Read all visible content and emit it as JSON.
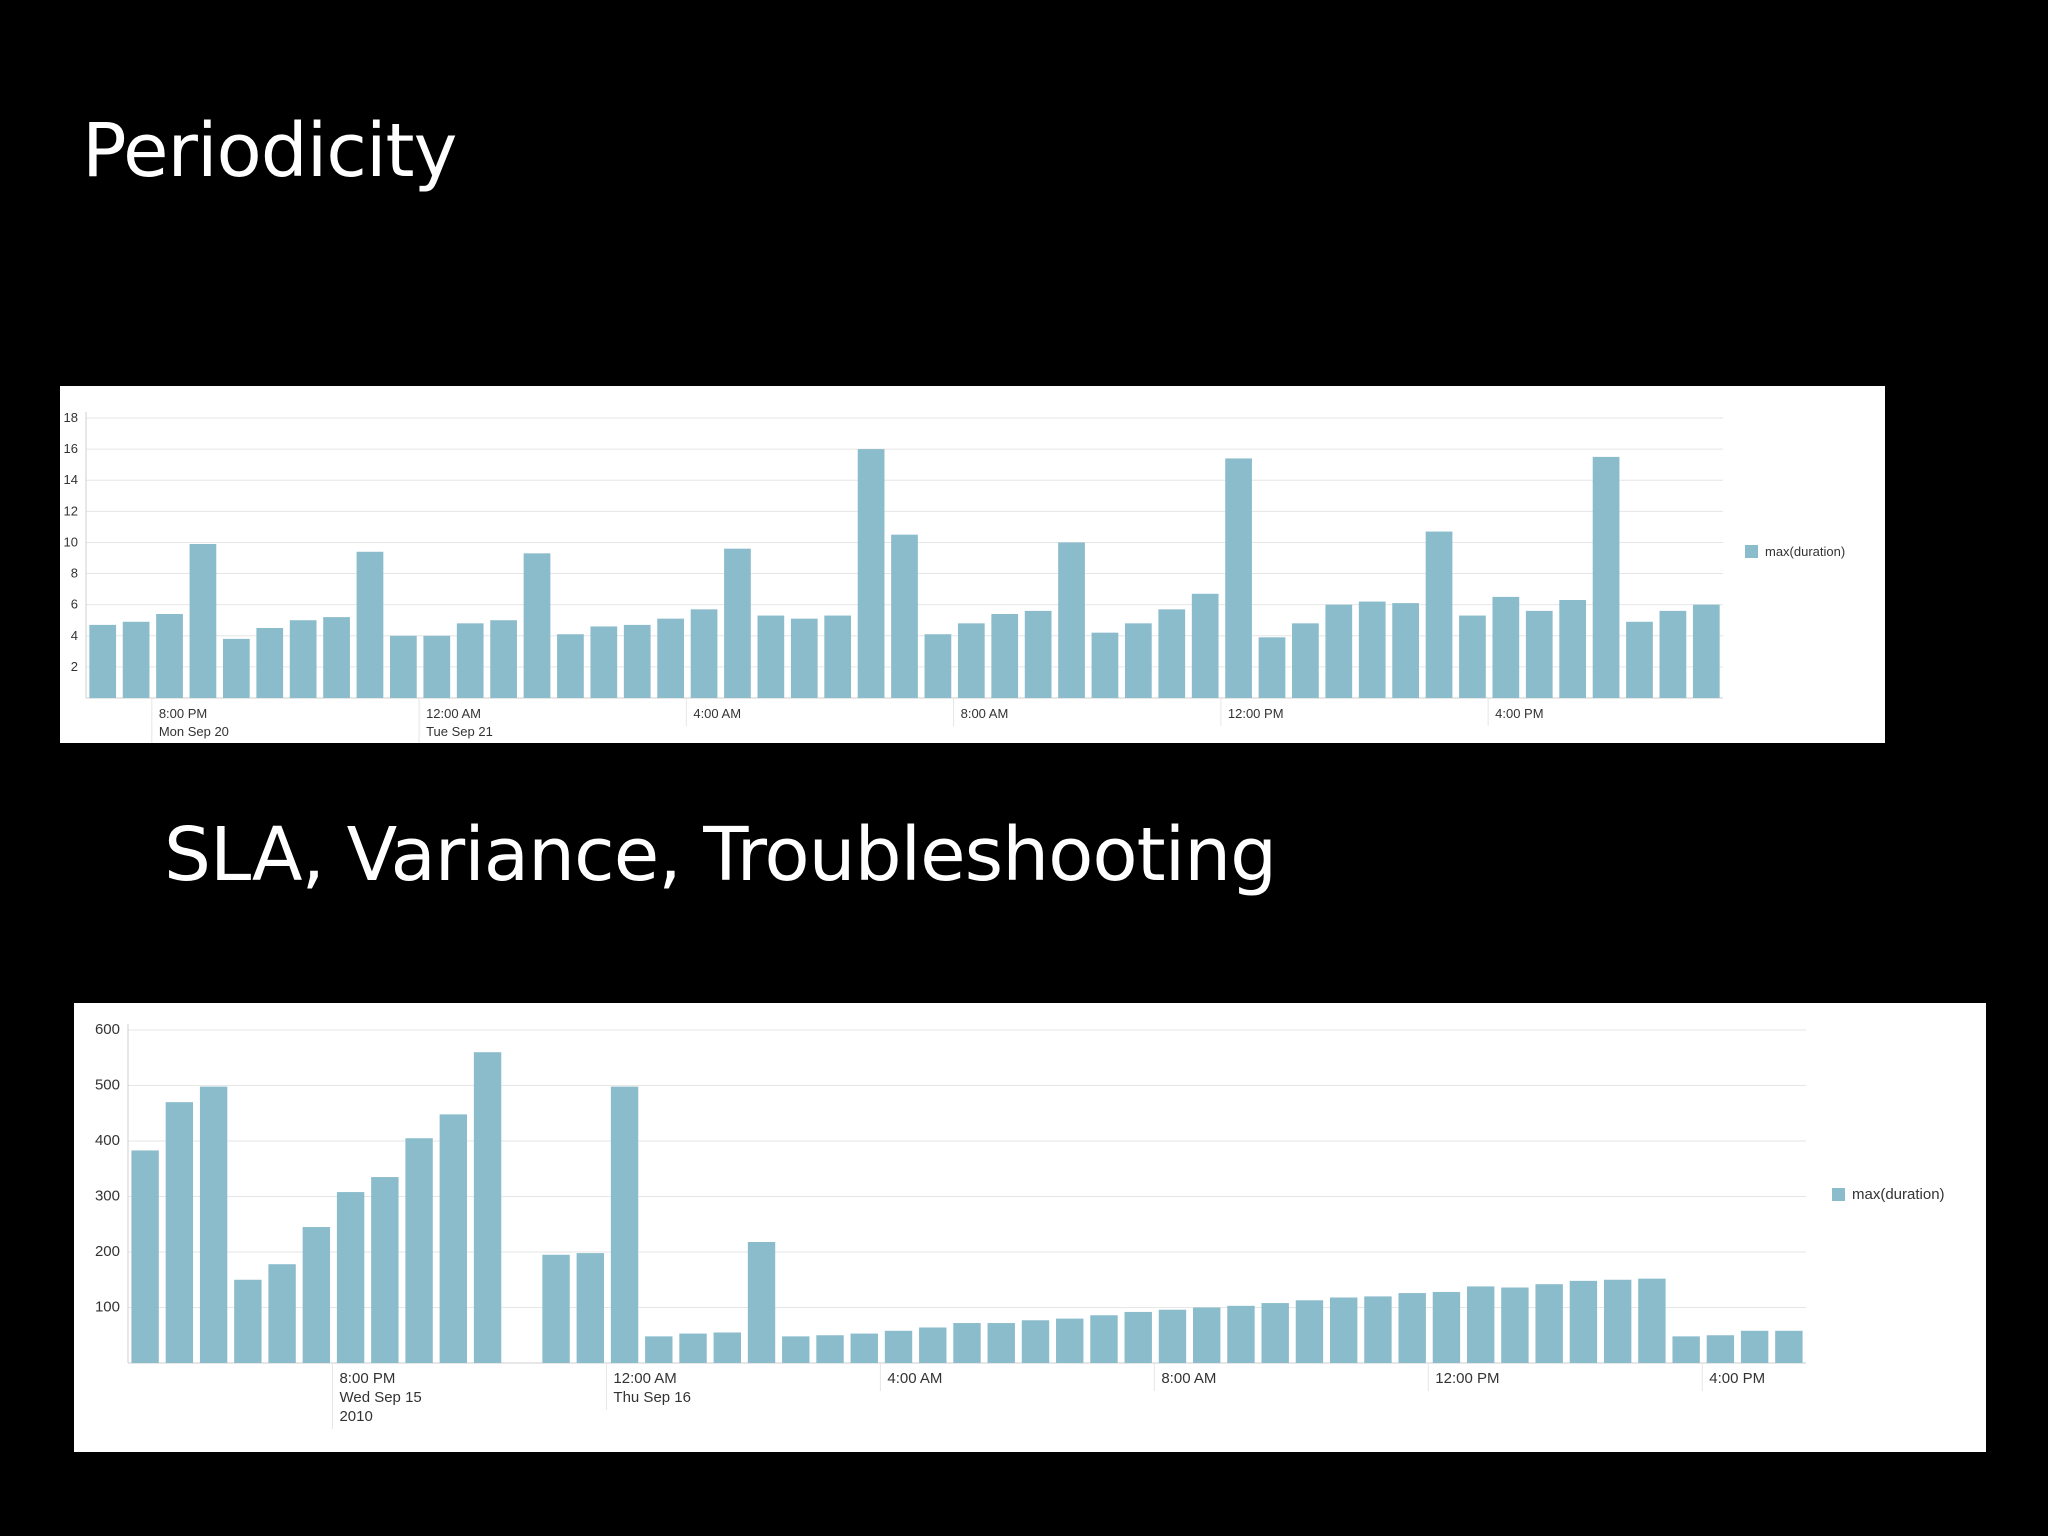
{
  "slide": {
    "title_1": "Periodicity",
    "title_2": "SLA, Variance, Troubleshooting"
  },
  "colors": {
    "bar": "#8bbccb",
    "grid": "#e6e6e6",
    "axis": "#cfcfcf"
  },
  "chart_data": [
    {
      "type": "bar",
      "title": "",
      "xlabel": "",
      "ylabel": "",
      "ylim": [
        0,
        18
      ],
      "yticks": [
        2,
        4,
        6,
        8,
        10,
        12,
        14,
        16,
        18
      ],
      "grid": true,
      "legend": {
        "placement": "right",
        "entries": [
          "max(duration)"
        ]
      },
      "x_ticks": [
        {
          "bar_index": 2,
          "lines": [
            "8:00 PM",
            "Mon Sep 20"
          ]
        },
        {
          "bar_index": 10,
          "lines": [
            "12:00 AM",
            "Tue Sep 21"
          ]
        },
        {
          "bar_index": 18,
          "lines": [
            "4:00 AM"
          ]
        },
        {
          "bar_index": 26,
          "lines": [
            "8:00 AM"
          ]
        },
        {
          "bar_index": 34,
          "lines": [
            "12:00 PM"
          ]
        },
        {
          "bar_index": 42,
          "lines": [
            "4:00 PM"
          ]
        }
      ],
      "series": [
        {
          "name": "max(duration)",
          "values": [
            4.7,
            4.9,
            5.4,
            9.9,
            3.8,
            4.5,
            5.0,
            5.2,
            9.4,
            4.0,
            4.0,
            4.8,
            5.0,
            9.3,
            4.1,
            4.6,
            4.7,
            5.1,
            5.7,
            9.6,
            5.3,
            5.1,
            5.3,
            16.0,
            10.5,
            4.1,
            4.8,
            5.4,
            5.6,
            10.0,
            4.2,
            4.8,
            5.7,
            6.7,
            15.4,
            3.9,
            4.8,
            6.0,
            6.2,
            6.1,
            10.7,
            5.3,
            6.5,
            5.6,
            6.3,
            15.5,
            4.9,
            5.6,
            6.0
          ]
        }
      ]
    },
    {
      "type": "bar",
      "title": "",
      "xlabel": "",
      "ylabel": "",
      "ylim": [
        0,
        600
      ],
      "yticks": [
        100,
        200,
        300,
        400,
        500,
        600
      ],
      "grid": true,
      "legend": {
        "placement": "right",
        "entries": [
          "max(duration)"
        ]
      },
      "x_ticks": [
        {
          "bar_index": 6,
          "lines": [
            "8:00 PM",
            "Wed Sep 15",
            "2010"
          ]
        },
        {
          "bar_index": 14,
          "lines": [
            "12:00 AM",
            "Thu Sep 16"
          ]
        },
        {
          "bar_index": 22,
          "lines": [
            "4:00 AM"
          ]
        },
        {
          "bar_index": 30,
          "lines": [
            "8:00 AM"
          ]
        },
        {
          "bar_index": 38,
          "lines": [
            "12:00 PM"
          ]
        },
        {
          "bar_index": 46,
          "lines": [
            "4:00 PM"
          ]
        }
      ],
      "series": [
        {
          "name": "max(duration)",
          "values": [
            383,
            470,
            498,
            150,
            178,
            245,
            308,
            335,
            405,
            448,
            560,
            null,
            195,
            198,
            498,
            48,
            53,
            55,
            218,
            48,
            50,
            53,
            58,
            64,
            72,
            72,
            77,
            80,
            86,
            92,
            96,
            100,
            103,
            108,
            113,
            118,
            120,
            126,
            128,
            138,
            136,
            142,
            148,
            150,
            152,
            48,
            50,
            58,
            58
          ]
        }
      ]
    }
  ]
}
